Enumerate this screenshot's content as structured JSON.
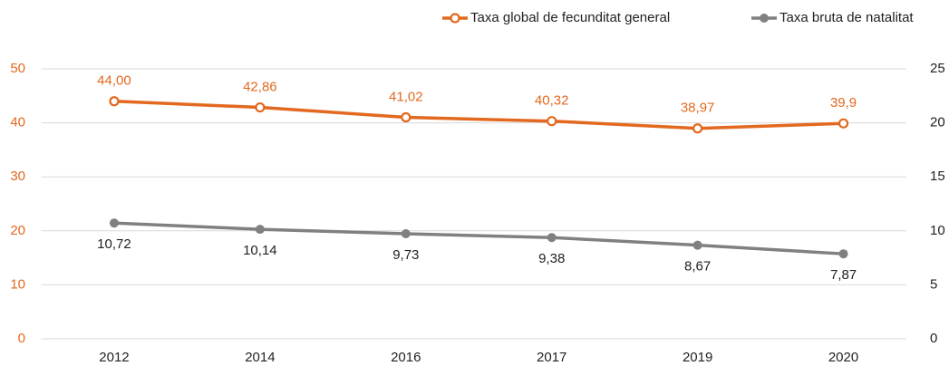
{
  "chart_data": {
    "type": "line",
    "categories": [
      "2012",
      "2014",
      "2016",
      "2017",
      "2019",
      "2020"
    ],
    "series": [
      {
        "name": "Taxa global de fecunditat general",
        "color": "#e2691f",
        "axis": "y",
        "values": [
          44.0,
          42.86,
          41.02,
          40.32,
          38.97,
          39.9
        ],
        "value_labels": [
          "44,00",
          "42,86",
          "41,02",
          "40,32",
          "38,97",
          "39,9"
        ]
      },
      {
        "name": "Taxa bruta de natalitat",
        "color": "#808080",
        "axis": "y2",
        "values": [
          10.72,
          10.14,
          9.73,
          9.38,
          8.67,
          7.87
        ],
        "value_labels": [
          "10,72",
          "10,14",
          "9,73",
          "9,38",
          "8,67",
          "7,87"
        ]
      }
    ],
    "ylim": [
      0,
      50
    ],
    "yticks": [
      0,
      10,
      20,
      30,
      40,
      50
    ],
    "ytick_color": "#e2691f",
    "y2lim": [
      0,
      25
    ],
    "y2ticks": [
      0,
      5,
      10,
      15,
      20,
      25
    ],
    "y2tick_color": "#222222",
    "grid": true
  }
}
